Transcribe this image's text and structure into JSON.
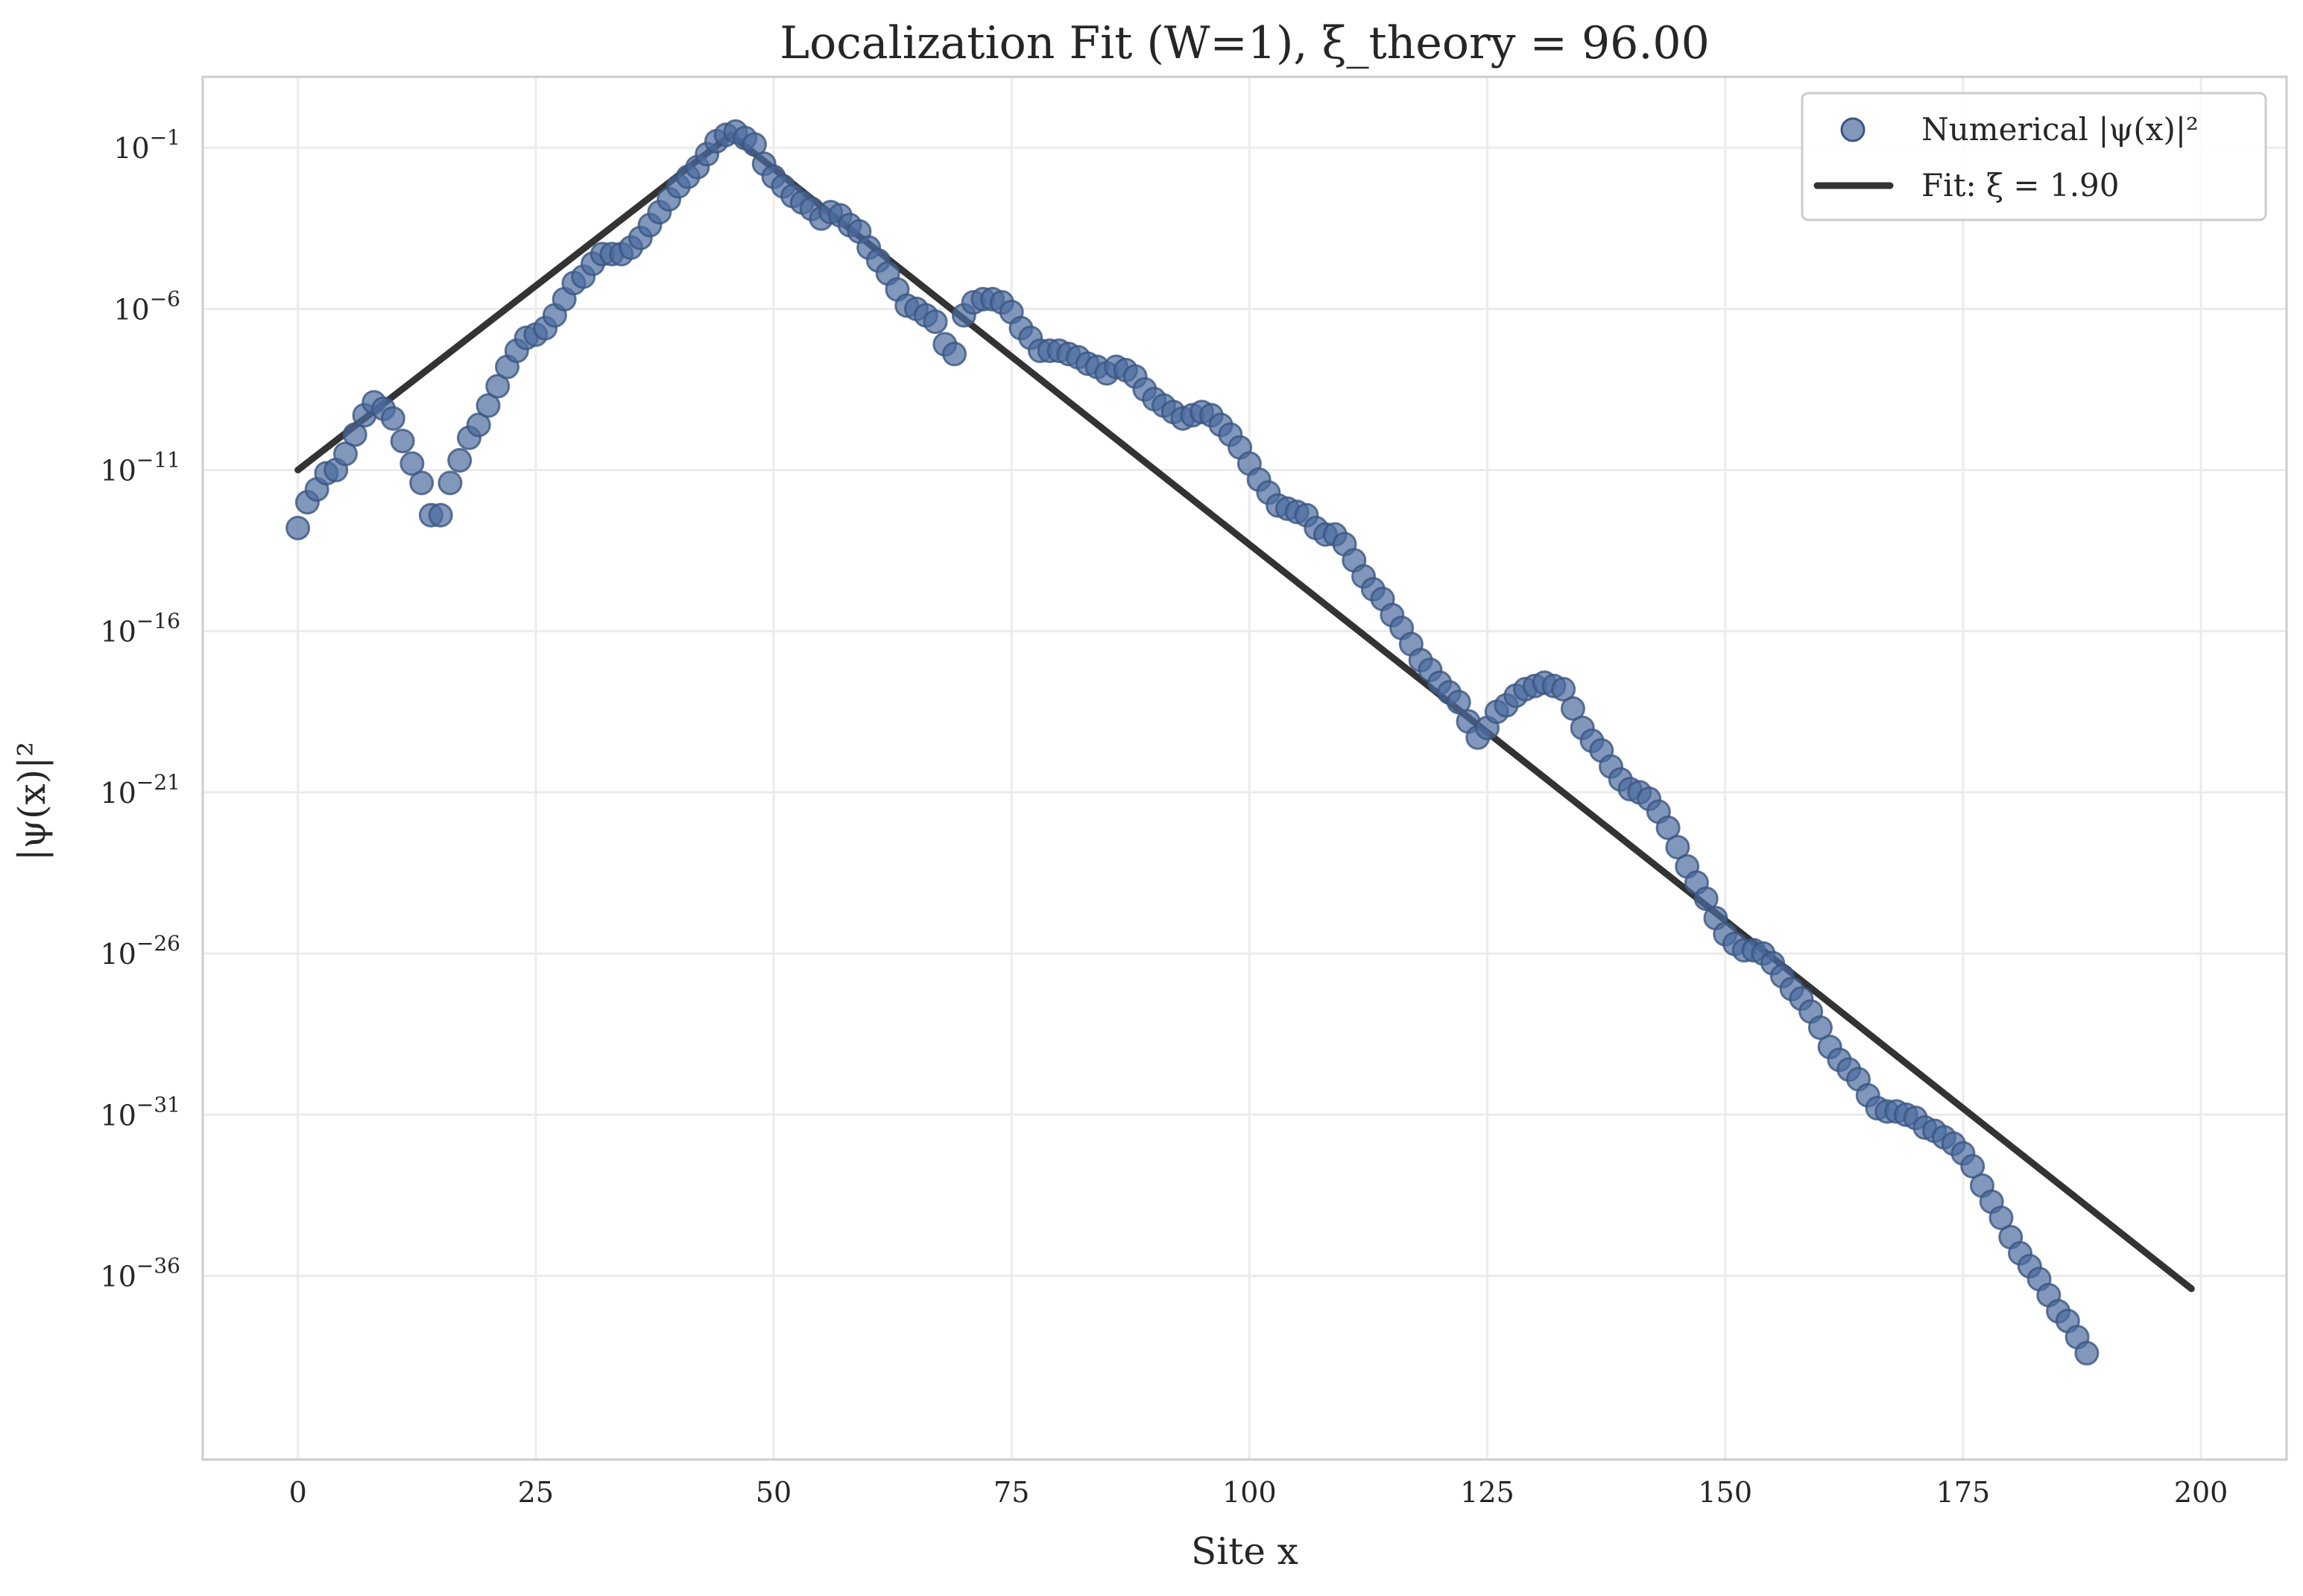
{
  "chart_data": {
    "type": "scatter",
    "title": "Localization Fit (W=1), ξ_theory = 96.00",
    "xlabel": "Site x",
    "ylabel": "|ψ(x)|²",
    "xlim": [
      -10,
      209
    ],
    "ylim_log10": [
      -41.7,
      1.2
    ],
    "y_scale": "log",
    "x_ticks": [
      0,
      25,
      50,
      75,
      100,
      125,
      150,
      175,
      200
    ],
    "y_ticks": [
      {
        "exp": -1,
        "base": "10",
        "sup": "−1"
      },
      {
        "exp": -6,
        "base": "10",
        "sup": "−6"
      },
      {
        "exp": -11,
        "base": "10",
        "sup": "−11"
      },
      {
        "exp": -16,
        "base": "10",
        "sup": "−16"
      },
      {
        "exp": -21,
        "base": "10",
        "sup": "−21"
      },
      {
        "exp": -26,
        "base": "10",
        "sup": "−26"
      },
      {
        "exp": -31,
        "base": "10",
        "sup": "−31"
      },
      {
        "exp": -36,
        "base": "10",
        "sup": "−36"
      }
    ],
    "grid": true,
    "legend_position": "top-right",
    "colors": {
      "points": "#4c6c9f",
      "points_edge": "#3b5580",
      "fit": "#333333",
      "grid": "#ebebeb",
      "spine": "#cccccc"
    },
    "series": [
      {
        "name": "Numerical |ψ(x)|²",
        "kind": "scatter",
        "x_start": 0,
        "log10_y": [
          -12.8,
          -12.0,
          -11.6,
          -11.1,
          -11.0,
          -10.5,
          -9.9,
          -9.3,
          -8.9,
          -9.1,
          -9.4,
          -10.1,
          -10.8,
          -11.4,
          -12.4,
          -12.4,
          -11.4,
          -10.7,
          -10.0,
          -9.6,
          -9.0,
          -8.4,
          -7.8,
          -7.3,
          -6.9,
          -6.8,
          -6.6,
          -6.2,
          -5.7,
          -5.2,
          -5.0,
          -4.6,
          -4.3,
          -4.3,
          -4.3,
          -4.1,
          -3.8,
          -3.4,
          -3.0,
          -2.6,
          -2.2,
          -1.9,
          -1.6,
          -1.2,
          -0.8,
          -0.6,
          -0.5,
          -0.7,
          -0.9,
          -1.5,
          -1.9,
          -2.2,
          -2.5,
          -2.7,
          -2.9,
          -3.2,
          -3.0,
          -3.1,
          -3.4,
          -3.6,
          -4.1,
          -4.5,
          -4.9,
          -5.4,
          -5.9,
          -6.0,
          -6.2,
          -6.4,
          -7.1,
          -7.4,
          -6.2,
          -5.8,
          -5.7,
          -5.7,
          -5.8,
          -6.1,
          -6.6,
          -6.9,
          -7.3,
          -7.3,
          -7.3,
          -7.4,
          -7.5,
          -7.7,
          -7.8,
          -8.0,
          -7.8,
          -7.9,
          -8.1,
          -8.5,
          -8.8,
          -9.0,
          -9.2,
          -9.4,
          -9.3,
          -9.2,
          -9.3,
          -9.6,
          -9.9,
          -10.3,
          -10.8,
          -11.3,
          -11.7,
          -12.1,
          -12.2,
          -12.3,
          -12.4,
          -12.8,
          -13.0,
          -13.0,
          -13.3,
          -13.8,
          -14.3,
          -14.7,
          -15.0,
          -15.5,
          -15.9,
          -16.4,
          -16.9,
          -17.2,
          -17.6,
          -17.9,
          -18.2,
          -18.8,
          -19.3,
          -19.0,
          -18.5,
          -18.3,
          -18.0,
          -17.8,
          -17.7,
          -17.6,
          -17.7,
          -17.8,
          -18.4,
          -19.0,
          -19.4,
          -19.7,
          -20.2,
          -20.6,
          -20.9,
          -21.0,
          -21.2,
          -21.6,
          -22.1,
          -22.7,
          -23.3,
          -23.8,
          -24.3,
          -24.9,
          -25.4,
          -25.7,
          -25.9,
          -25.9,
          -26.0,
          -26.3,
          -26.7,
          -27.1,
          -27.4,
          -27.8,
          -28.3,
          -28.9,
          -29.3,
          -29.6,
          -29.9,
          -30.4,
          -30.8,
          -30.9,
          -30.9,
          -31.0,
          -31.1,
          -31.4,
          -31.5,
          -31.7,
          -31.9,
          -32.2,
          -32.6,
          -33.2,
          -33.7,
          -34.2,
          -34.8,
          -35.3,
          -35.7,
          -36.1,
          -36.6,
          -37.1,
          -37.4,
          -37.9,
          -38.4
        ]
      },
      {
        "name": "Fit: ξ = 1.90",
        "kind": "line",
        "points": [
          [
            0,
            -11.0
          ],
          [
            45.5,
            -0.6
          ],
          [
            199,
            -36.4
          ]
        ]
      }
    ]
  }
}
